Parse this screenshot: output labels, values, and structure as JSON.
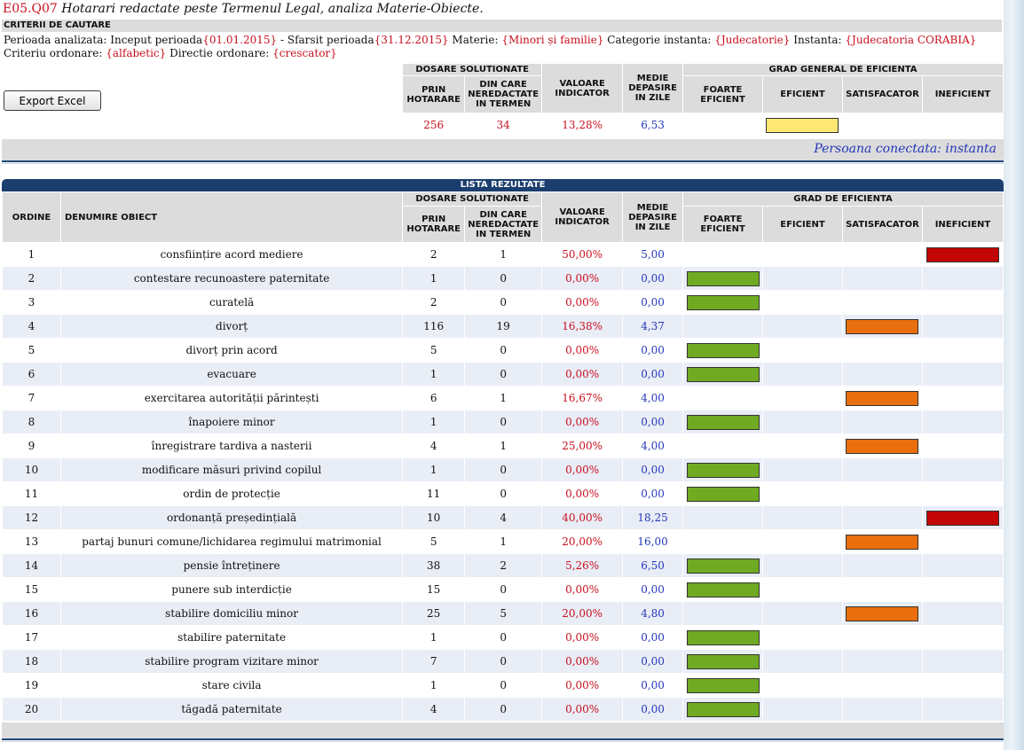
{
  "page": {
    "code": "E05.Q07",
    "title": "Hotarari redactate peste Termenul Legal, analiza Materie-Obiecte."
  },
  "criteria": {
    "header": "CRITERII DE CAUTARE",
    "lbl_period": "Perioada analizata: Inceput perioada",
    "start": "{01.01.2015}",
    "lbl_end": " - Sfarsit perioada",
    "end": "{31.12.2015}",
    "lbl_materie": " Materie: ",
    "materie": "{Minori și familie}",
    "lbl_categorie": " Categorie instanta: ",
    "categorie": "{Judecatorie}",
    "lbl_instanta": " Instanta: ",
    "instanta": "{Judecatoria CORABIA}",
    "lbl_criteriu": " Criteriu ordonare: ",
    "criteriu": "{alfabetic}",
    "lbl_directie": " Directie ordonare: ",
    "directie": "{crescator}"
  },
  "export_label": "Export Excel",
  "headers": {
    "dosare": "DOSARE SOLUTIONATE",
    "prin": "PRIN HOTARARE",
    "din_care": "DIN CARE NEREDACTATE IN TERMEN",
    "valoare": "VALOARE INDICATOR",
    "medie": "MEDIE DEPASIRE IN ZILE",
    "grad_general": "GRAD GENERAL DE EFICIENTA",
    "grad": "GRAD DE EFICIENTA",
    "foarte": "FOARTE EFICIENT",
    "eficient": "EFICIENT",
    "satisfacator": "SATISFACATOR",
    "ineficient": "INEFICIENT",
    "ordine": "ORDINE",
    "denumire": "DENUMIRE OBIECT"
  },
  "summary": {
    "prin": "256",
    "din_care": "34",
    "valoare": "13,28%",
    "medie": "6,53",
    "grade": "eficient"
  },
  "connected_user": "Persoana conectata: instanta",
  "results_title": "LISTA REZULTATE",
  "colors": {
    "foarte": "#6faa22",
    "eficient": "#ffe774",
    "satisfacator": "#e86e0e",
    "ineficient": "#c20505"
  },
  "rows": [
    {
      "ordine": "1",
      "name": "consființire acord mediere",
      "prin": "2",
      "din": "1",
      "val": "50,00%",
      "medie": "5,00",
      "grade": "ineficient"
    },
    {
      "ordine": "2",
      "name": "contestare recunoastere paternitate",
      "prin": "1",
      "din": "0",
      "val": "0,00%",
      "medie": "0,00",
      "grade": "foarte"
    },
    {
      "ordine": "3",
      "name": "curatelă",
      "prin": "2",
      "din": "0",
      "val": "0,00%",
      "medie": "0,00",
      "grade": "foarte"
    },
    {
      "ordine": "4",
      "name": "divorț",
      "prin": "116",
      "din": "19",
      "val": "16,38%",
      "medie": "4,37",
      "grade": "satisfacator"
    },
    {
      "ordine": "5",
      "name": "divorț prin acord",
      "prin": "5",
      "din": "0",
      "val": "0,00%",
      "medie": "0,00",
      "grade": "foarte"
    },
    {
      "ordine": "6",
      "name": "evacuare",
      "prin": "1",
      "din": "0",
      "val": "0,00%",
      "medie": "0,00",
      "grade": "foarte"
    },
    {
      "ordine": "7",
      "name": "exercitarea autorității părintești",
      "prin": "6",
      "din": "1",
      "val": "16,67%",
      "medie": "4,00",
      "grade": "satisfacator"
    },
    {
      "ordine": "8",
      "name": "înapoiere minor",
      "prin": "1",
      "din": "0",
      "val": "0,00%",
      "medie": "0,00",
      "grade": "foarte"
    },
    {
      "ordine": "9",
      "name": "înregistrare tardiva a nasterii",
      "prin": "4",
      "din": "1",
      "val": "25,00%",
      "medie": "4,00",
      "grade": "satisfacator"
    },
    {
      "ordine": "10",
      "name": "modificare măsuri privind copilul",
      "prin": "1",
      "din": "0",
      "val": "0,00%",
      "medie": "0,00",
      "grade": "foarte"
    },
    {
      "ordine": "11",
      "name": "ordin de protecție",
      "prin": "11",
      "din": "0",
      "val": "0,00%",
      "medie": "0,00",
      "grade": "foarte"
    },
    {
      "ordine": "12",
      "name": "ordonanță președințială",
      "prin": "10",
      "din": "4",
      "val": "40,00%",
      "medie": "18,25",
      "grade": "ineficient"
    },
    {
      "ordine": "13",
      "name": "partaj bunuri comune/lichidarea regimului matrimonial",
      "prin": "5",
      "din": "1",
      "val": "20,00%",
      "medie": "16,00",
      "grade": "satisfacator"
    },
    {
      "ordine": "14",
      "name": "pensie întreținere",
      "prin": "38",
      "din": "2",
      "val": "5,26%",
      "medie": "6,50",
      "grade": "foarte"
    },
    {
      "ordine": "15",
      "name": "punere sub interdicție",
      "prin": "15",
      "din": "0",
      "val": "0,00%",
      "medie": "0,00",
      "grade": "foarte"
    },
    {
      "ordine": "16",
      "name": "stabilire domiciliu minor",
      "prin": "25",
      "din": "5",
      "val": "20,00%",
      "medie": "4,80",
      "grade": "satisfacator"
    },
    {
      "ordine": "17",
      "name": "stabilire paternitate",
      "prin": "1",
      "din": "0",
      "val": "0,00%",
      "medie": "0,00",
      "grade": "foarte"
    },
    {
      "ordine": "18",
      "name": "stabilire program vizitare minor",
      "prin": "7",
      "din": "0",
      "val": "0,00%",
      "medie": "0,00",
      "grade": "foarte"
    },
    {
      "ordine": "19",
      "name": "stare civila",
      "prin": "1",
      "din": "0",
      "val": "0,00%",
      "medie": "0,00",
      "grade": "foarte"
    },
    {
      "ordine": "20",
      "name": "tăgadă paternitate",
      "prin": "4",
      "din": "0",
      "val": "0,00%",
      "medie": "0,00",
      "grade": "foarte"
    }
  ]
}
